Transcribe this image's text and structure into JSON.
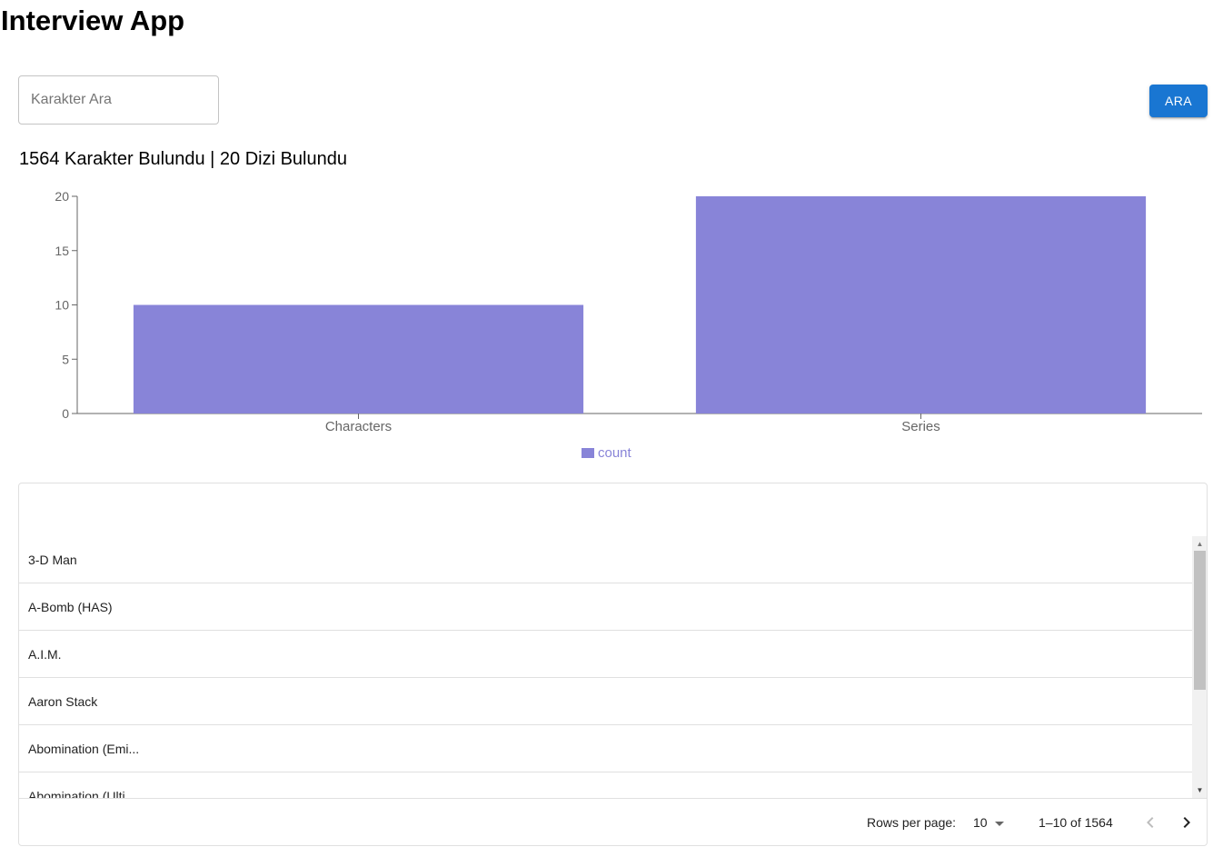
{
  "app": {
    "title": "Interview App"
  },
  "search": {
    "placeholder": "Karakter Ara",
    "value": "",
    "button_label": "ARA"
  },
  "summary": {
    "text": "1564 Karakter Bulundu | 20 Dizi Bulundu"
  },
  "chart_data": {
    "type": "bar",
    "categories": [
      "Characters",
      "Series"
    ],
    "series": [
      {
        "name": "count",
        "values": [
          10,
          20
        ]
      }
    ],
    "y_ticks": [
      "0",
      "5",
      "10",
      "15",
      "20"
    ],
    "ylim": [
      0,
      20
    ],
    "color": "#8884d8",
    "legend": "bottom",
    "grid": false
  },
  "table": {
    "rows": [
      "3-D Man",
      "A-Bomb (HAS)",
      "A.I.M.",
      "Aaron Stack",
      "Abomination (Emi...",
      "Abomination (Ulti"
    ]
  },
  "pagination": {
    "rows_per_page_label": "Rows per page:",
    "rows_per_page_value": "10",
    "range_text": "1–10 of 1564"
  }
}
